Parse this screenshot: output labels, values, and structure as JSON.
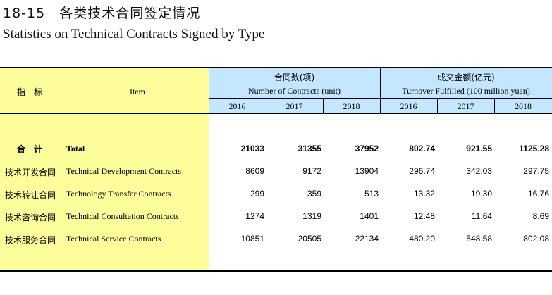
{
  "title": {
    "cn": "18-15　各类技术合同签定情况",
    "en": "Statistics on Technical Contracts Signed by Type"
  },
  "header": {
    "item_cn": "指　标",
    "item_en": "Item",
    "contracts_cn": "合同数(项)",
    "contracts_en": "Number of Contracts (unit)",
    "turnover_cn": "成交金额(亿元)",
    "turnover_en": "Turnover Fulfilled (100 million yuan)",
    "years": [
      "2016",
      "2017",
      "2018",
      "2016",
      "2017",
      "2018"
    ]
  },
  "rows": [
    {
      "cn": "合　计",
      "en": "Total",
      "contracts": [
        "21033",
        "31355",
        "37952"
      ],
      "turnover": [
        "802.74",
        "921.55",
        "1125.28"
      ]
    },
    {
      "cn": "技术开发合同",
      "en": "Technical Development Contracts",
      "contracts": [
        "8609",
        "9172",
        "13904"
      ],
      "turnover": [
        "296.74",
        "342.03",
        "297.75"
      ]
    },
    {
      "cn": "技术转让合同",
      "en": "Technology Transfer Contracts",
      "contracts": [
        "299",
        "359",
        "513"
      ],
      "turnover": [
        "13.32",
        "19.30",
        "16.76"
      ]
    },
    {
      "cn": "技术咨询合同",
      "en": "Technical Consultation Contracts",
      "contracts": [
        "1274",
        "1319",
        "1401"
      ],
      "turnover": [
        "12.48",
        "11.64",
        "8.69"
      ]
    },
    {
      "cn": "技术服务合同",
      "en": "Technical Service Contracts",
      "contracts": [
        "10851",
        "20505",
        "22134"
      ],
      "turnover": [
        "480.20",
        "548.58",
        "802.08"
      ]
    }
  ],
  "colors": {
    "item_panel": "#fdfd9b",
    "header_panel": "#c5e6ff"
  }
}
